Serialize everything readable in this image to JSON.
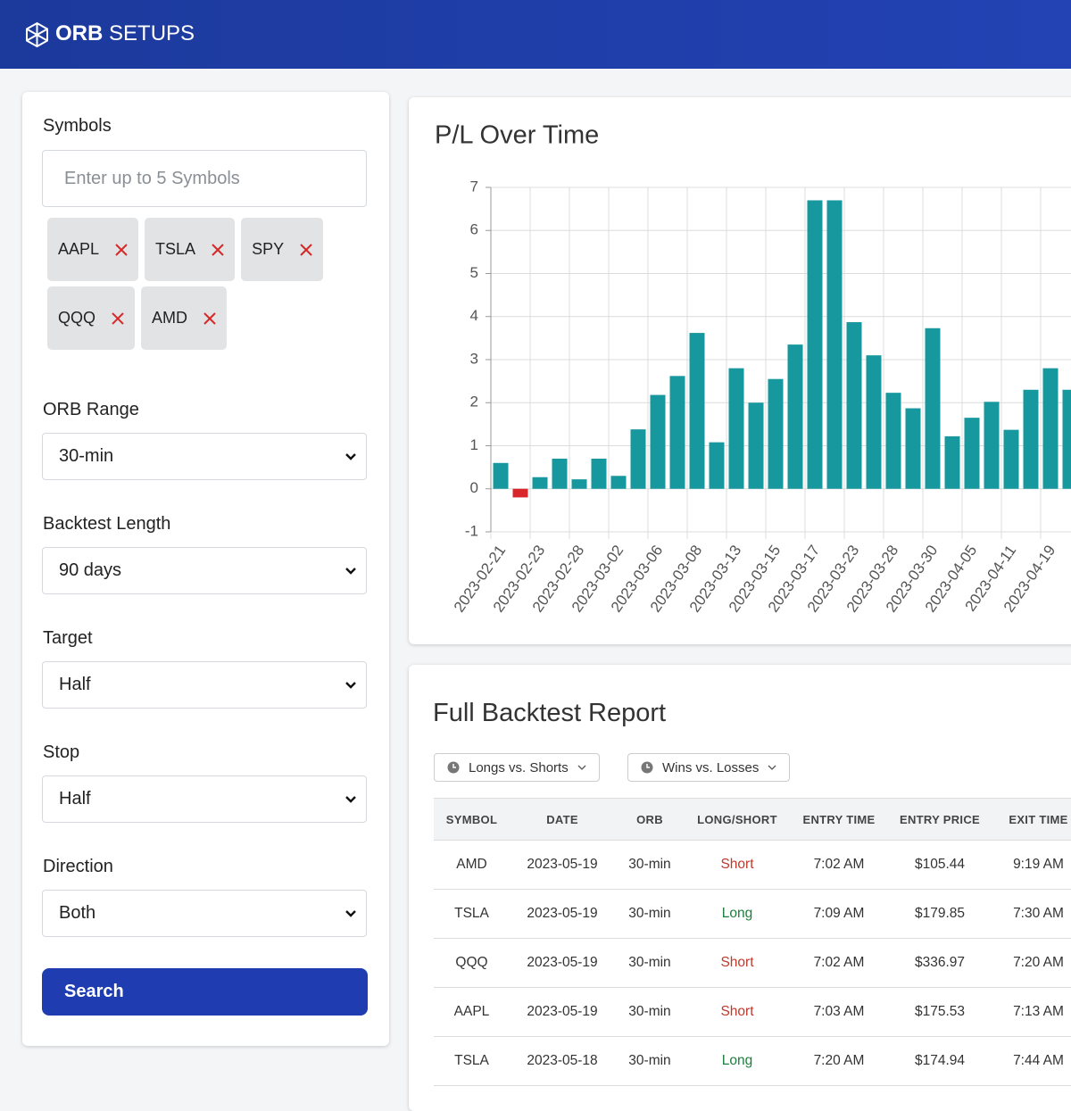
{
  "header": {
    "brand_bold": "ORB",
    "brand_light": "SETUPS"
  },
  "form": {
    "symbols_label": "Symbols",
    "symbols_placeholder": "Enter up to 5 Symbols",
    "chips": [
      "AAPL",
      "TSLA",
      "SPY",
      "QQQ",
      "AMD"
    ],
    "fields": [
      {
        "label": "ORB Range",
        "value": "30-min"
      },
      {
        "label": "Backtest Length",
        "value": "90 days"
      },
      {
        "label": "Target",
        "value": "Half"
      },
      {
        "label": "Stop",
        "value": "Half"
      },
      {
        "label": "Direction",
        "value": "Both"
      }
    ],
    "button": "Search"
  },
  "chart_data": {
    "type": "bar",
    "title": "P/L Over Time",
    "categories": [
      "2023-02-21",
      null,
      "2023-02-23",
      null,
      "2023-02-28",
      null,
      "2023-03-02",
      null,
      "2023-03-06",
      null,
      "2023-03-08",
      null,
      "2023-03-13",
      null,
      "2023-03-15",
      null,
      "2023-03-17",
      null,
      "2023-03-23",
      null,
      "2023-03-28",
      null,
      "2023-03-30",
      null,
      "2023-04-05",
      null,
      "2023-04-11",
      null,
      "2023-04-19",
      null
    ],
    "values": [
      0.6,
      -0.2,
      0.27,
      0.7,
      0.22,
      0.7,
      0.3,
      1.38,
      2.18,
      2.62,
      3.62,
      1.08,
      2.8,
      2.0,
      2.55,
      3.35,
      6.7,
      6.7,
      3.87,
      3.1,
      2.23,
      1.87,
      3.73,
      1.22,
      1.65,
      2.02,
      1.37,
      2.3,
      2.8,
      2.3
    ],
    "color": "#17989e",
    "negative_color": "#d9262a",
    "ylim": [
      -1,
      7
    ],
    "yticks": [
      -1,
      0,
      1,
      2,
      3,
      4,
      5,
      6,
      7
    ],
    "grid": true
  },
  "report": {
    "title": "Full Backtest Report",
    "filters": [
      "Longs vs. Shorts",
      "Wins vs. Losses"
    ]
  },
  "table": {
    "columns": [
      "SYMBOL",
      "DATE",
      "ORB",
      "LONG/SHORT",
      "ENTRY TIME",
      "ENTRY PRICE",
      "EXIT TIME"
    ],
    "rows": [
      [
        "AMD",
        "2023-05-19",
        "30-min",
        "Short",
        "7:02 AM",
        "$105.44",
        "9:19 AM"
      ],
      [
        "TSLA",
        "2023-05-19",
        "30-min",
        "Long",
        "7:09 AM",
        "$179.85",
        "7:30 AM"
      ],
      [
        "QQQ",
        "2023-05-19",
        "30-min",
        "Short",
        "7:02 AM",
        "$336.97",
        "7:20 AM"
      ],
      [
        "AAPL",
        "2023-05-19",
        "30-min",
        "Short",
        "7:03 AM",
        "$175.53",
        "7:13 AM"
      ],
      [
        "TSLA",
        "2023-05-18",
        "30-min",
        "Long",
        "7:20 AM",
        "$174.94",
        "7:44 AM"
      ]
    ],
    "side_colors": {
      "Long": "#1e7e3e",
      "Short": "#c0392b"
    }
  }
}
